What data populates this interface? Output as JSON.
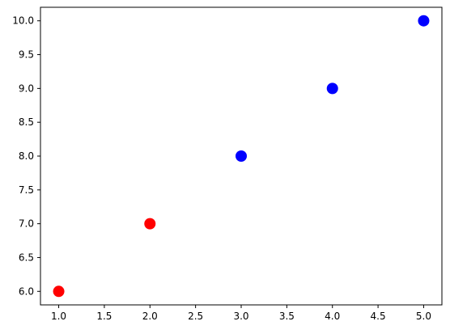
{
  "chart_data": {
    "type": "scatter",
    "title": "",
    "xlabel": "",
    "ylabel": "",
    "xlim": [
      0.8,
      5.2
    ],
    "ylim": [
      5.8,
      10.2
    ],
    "grid": false,
    "x_ticks": [
      1.0,
      1.5,
      2.0,
      2.5,
      3.0,
      3.5,
      4.0,
      4.5,
      5.0
    ],
    "x_tick_labels": [
      "1.0",
      "1.5",
      "2.0",
      "2.5",
      "3.0",
      "3.5",
      "4.0",
      "4.5",
      "5.0"
    ],
    "y_ticks": [
      6.0,
      6.5,
      7.0,
      7.5,
      8.0,
      8.5,
      9.0,
      9.5,
      10.0
    ],
    "y_tick_labels": [
      "6.0",
      "6.5",
      "7.0",
      "7.5",
      "8.0",
      "8.5",
      "9.0",
      "9.5",
      "10.0"
    ],
    "points": [
      {
        "x": 1,
        "y": 6,
        "color": "#ff0000"
      },
      {
        "x": 2,
        "y": 7,
        "color": "#ff0000"
      },
      {
        "x": 3,
        "y": 8,
        "color": "#0000ff"
      },
      {
        "x": 4,
        "y": 9,
        "color": "#0000ff"
      },
      {
        "x": 5,
        "y": 10,
        "color": "#0000ff"
      }
    ]
  }
}
